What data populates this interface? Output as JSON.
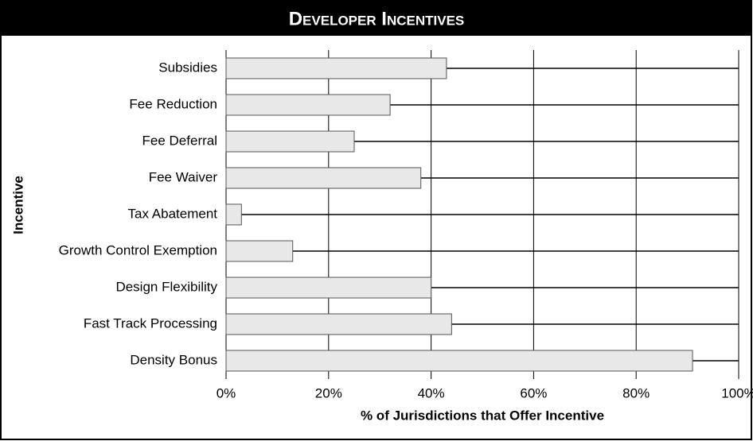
{
  "chart_data": {
    "type": "barh",
    "title": "Developer Incentives",
    "categories": [
      "Subsidies",
      "Fee Reduction",
      "Fee Deferral",
      "Fee Waiver",
      "Tax Abatement",
      "Growth Control Exemption",
      "Design Flexibility",
      "Fast Track Processing",
      "Density Bonus"
    ],
    "values": [
      43,
      32,
      25,
      38,
      3,
      13,
      40,
      44,
      91
    ],
    "color": "#e8e8e8",
    "xlim": [
      0,
      100
    ],
    "xticks": [
      {
        "value": 0,
        "label": "0%"
      },
      {
        "value": 20,
        "label": "20%"
      },
      {
        "value": 40,
        "label": "40%"
      },
      {
        "value": 60,
        "label": "60%"
      },
      {
        "value": 80,
        "label": "80%"
      },
      {
        "value": 100,
        "label": "100%"
      }
    ],
    "xlabel": "% of Jurisdictions that Offer Incentive",
    "ylabel": "Incentive",
    "grid": true
  }
}
